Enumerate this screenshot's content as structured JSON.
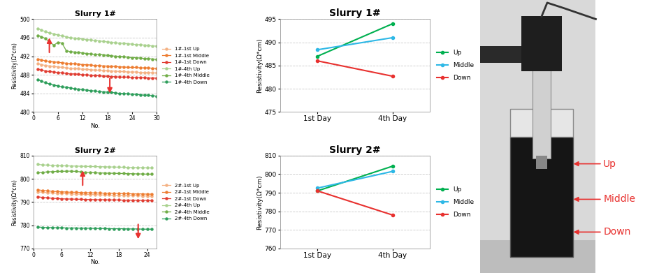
{
  "chart_data": [
    {
      "type": "line",
      "title": "Slurry 1#",
      "xlabel": "No.",
      "ylabel": "Resistivity(Ω*cm)",
      "x": [
        1,
        2,
        3,
        4,
        5,
        6,
        7,
        8,
        9,
        10,
        11,
        12,
        13,
        14,
        15,
        16,
        17,
        18,
        19,
        20,
        21,
        22,
        23,
        24,
        25,
        26,
        27,
        28,
        29,
        30
      ],
      "xlim": [
        0,
        30
      ],
      "xticks": [
        0,
        6,
        12,
        18,
        24,
        30
      ],
      "ylim": [
        480,
        500
      ],
      "yticks": [
        480,
        484,
        488,
        492,
        496,
        500
      ],
      "grid": true,
      "legend": "right",
      "marker": "o",
      "series": [
        {
          "name": "1#-1st Up",
          "color": "#f4b183",
          "values": [
            490.4,
            490.2,
            490.0,
            489.9,
            489.8,
            489.7,
            489.6,
            489.5,
            489.4,
            489.4,
            489.3,
            489.2,
            489.2,
            489.1,
            489.0,
            489.0,
            488.9,
            488.9,
            488.8,
            488.8,
            488.7,
            488.7,
            488.6,
            488.6,
            488.6,
            488.5,
            488.5,
            488.5,
            488.4,
            488.4
          ]
        },
        {
          "name": "1#-1st Middle",
          "color": "#ed7d31",
          "values": [
            491.4,
            491.2,
            491.0,
            490.9,
            490.8,
            490.7,
            490.6,
            490.5,
            490.4,
            490.4,
            490.3,
            490.2,
            490.2,
            490.1,
            490.0,
            490.0,
            489.9,
            489.9,
            489.8,
            489.8,
            489.7,
            489.7,
            489.6,
            489.6,
            489.6,
            489.5,
            489.5,
            489.5,
            489.4,
            489.4
          ]
        },
        {
          "name": "1#-1st Down",
          "color": "#e03c31",
          "values": [
            489.2,
            489.0,
            488.8,
            488.7,
            488.6,
            488.5,
            488.4,
            488.3,
            488.2,
            488.2,
            488.1,
            488.0,
            488.0,
            487.9,
            487.8,
            487.8,
            487.7,
            487.7,
            487.6,
            487.6,
            487.5,
            487.5,
            487.5,
            487.4,
            487.4,
            487.4,
            487.4,
            487.3,
            487.3,
            487.3
          ]
        },
        {
          "name": "1#-4th Up",
          "color": "#a9d18e",
          "values": [
            498.0,
            497.6,
            497.3,
            497.0,
            496.8,
            496.6,
            496.4,
            496.2,
            496.0,
            495.9,
            495.8,
            495.7,
            495.6,
            495.5,
            495.4,
            495.3,
            495.2,
            495.1,
            495.0,
            494.9,
            494.8,
            494.8,
            494.7,
            494.6,
            494.5,
            494.5,
            494.4,
            494.3,
            494.2,
            494.2
          ]
        },
        {
          "name": "1#-4th Middle",
          "color": "#70ad47",
          "values": [
            496.5,
            496.2,
            495.8,
            495.0,
            494.4,
            495.0,
            494.8,
            493.2,
            493.0,
            492.9,
            492.8,
            492.7,
            492.6,
            492.5,
            492.4,
            492.4,
            492.3,
            492.2,
            492.1,
            492.0,
            492.0,
            491.9,
            491.8,
            491.7,
            491.7,
            491.6,
            491.5,
            491.5,
            491.4,
            491.3
          ]
        },
        {
          "name": "1#-4th Down",
          "color": "#2e9e5b",
          "values": [
            487.0,
            486.6,
            486.3,
            486.0,
            485.8,
            485.6,
            485.4,
            485.3,
            485.2,
            485.0,
            484.9,
            484.8,
            484.7,
            484.6,
            484.5,
            484.4,
            484.3,
            484.3,
            484.2,
            484.1,
            484.0,
            484.0,
            483.9,
            483.8,
            483.8,
            483.7,
            483.6,
            483.6,
            483.5,
            483.4
          ]
        }
      ]
    },
    {
      "type": "line",
      "title": "Slurry 2#",
      "xlabel": "No.",
      "ylabel": "Resistivity(Ω*cm)",
      "x": [
        1,
        2,
        3,
        4,
        5,
        6,
        7,
        8,
        9,
        10,
        11,
        12,
        13,
        14,
        15,
        16,
        17,
        18,
        19,
        20,
        21,
        22,
        23,
        24,
        25
      ],
      "xlim": [
        0,
        26
      ],
      "xticks": [
        0,
        6,
        12,
        18,
        24
      ],
      "ylim": [
        770,
        810
      ],
      "yticks": [
        770,
        780,
        790,
        800,
        810
      ],
      "grid": true,
      "legend": "right",
      "marker": "o",
      "series": [
        {
          "name": "2#-1st Up",
          "color": "#f4b183",
          "values": [
            794.4,
            794.2,
            794.0,
            793.9,
            793.8,
            793.7,
            793.6,
            793.5,
            793.4,
            793.4,
            793.3,
            793.2,
            793.2,
            793.1,
            793.0,
            793.0,
            792.9,
            792.9,
            792.8,
            792.8,
            792.7,
            792.7,
            792.6,
            792.6,
            792.5
          ]
        },
        {
          "name": "2#-1st Middle",
          "color": "#ed7d31",
          "values": [
            795.2,
            795.0,
            794.8,
            794.6,
            794.5,
            794.4,
            794.3,
            794.2,
            794.2,
            794.1,
            794.0,
            794.0,
            793.9,
            793.9,
            793.8,
            793.8,
            793.7,
            793.7,
            793.6,
            793.6,
            793.5,
            793.5,
            793.5,
            793.4,
            793.4
          ]
        },
        {
          "name": "2#-1st Down",
          "color": "#e03c31",
          "values": [
            792.2,
            792.0,
            791.8,
            791.6,
            791.5,
            791.4,
            791.3,
            791.3,
            791.2,
            791.2,
            791.1,
            791.1,
            791.0,
            791.0,
            791.0,
            790.9,
            790.9,
            790.9,
            790.8,
            790.8,
            790.8,
            790.7,
            790.7,
            790.7,
            790.6
          ]
        },
        {
          "name": "2#-4th Up",
          "color": "#a9d18e",
          "values": [
            806.2,
            806.0,
            805.9,
            805.8,
            805.7,
            805.6,
            805.6,
            805.5,
            805.5,
            805.4,
            805.4,
            805.3,
            805.3,
            805.2,
            805.2,
            805.1,
            805.1,
            805.0,
            805.0,
            804.9,
            804.9,
            804.8,
            804.8,
            804.7,
            804.7
          ]
        },
        {
          "name": "2#-4th Middle",
          "color": "#70ad47",
          "values": [
            802.6,
            802.8,
            803.0,
            803.1,
            803.2,
            803.2,
            803.3,
            803.3,
            803.2,
            803.0,
            802.8,
            802.7,
            802.6,
            802.5,
            802.5,
            802.4,
            802.4,
            802.3,
            802.3,
            802.2,
            802.2,
            802.1,
            802.1,
            802.0,
            802.0
          ]
        },
        {
          "name": "2#-4th Down",
          "color": "#2e9e5b",
          "values": [
            779.2,
            779.1,
            779.0,
            779.0,
            778.9,
            778.9,
            778.8,
            778.8,
            778.8,
            778.7,
            778.7,
            778.7,
            778.6,
            778.6,
            778.6,
            778.5,
            778.5,
            778.5,
            778.5,
            778.4,
            778.4,
            778.4,
            778.3,
            778.3,
            778.3
          ]
        }
      ]
    },
    {
      "type": "line",
      "title": "Slurry 1#",
      "ylabel": "Resistivity(Ω*cm)",
      "categories": [
        "1st Day",
        "4th Day"
      ],
      "ylim": [
        475,
        495
      ],
      "yticks": [
        475,
        480,
        485,
        490,
        495
      ],
      "grid": true,
      "legend": "right",
      "marker": "o",
      "series": [
        {
          "name": "Up",
          "color": "#00b050",
          "values": [
            487.0,
            494.0
          ]
        },
        {
          "name": "Middle",
          "color": "#2eb8e6",
          "values": [
            488.4,
            491.0
          ]
        },
        {
          "name": "Down",
          "color": "#e8312f",
          "values": [
            486.0,
            482.7
          ]
        }
      ]
    },
    {
      "type": "line",
      "title": "Slurry 2#",
      "ylabel": "Resistivity(Ω*cm)",
      "categories": [
        "1st Day",
        "4th Day"
      ],
      "ylim": [
        760,
        810
      ],
      "yticks": [
        760,
        770,
        780,
        790,
        800,
        810
      ],
      "grid": true,
      "legend": "right",
      "marker": "o",
      "series": [
        {
          "name": "Up",
          "color": "#00b050",
          "values": [
            791.0,
            804.3
          ]
        },
        {
          "name": "Middle",
          "color": "#2eb8e6",
          "values": [
            792.5,
            801.5
          ]
        },
        {
          "name": "Down",
          "color": "#e8312f",
          "values": [
            791.0,
            778.0
          ]
        }
      ]
    }
  ],
  "photo": {
    "labels": [
      "Up",
      "Middle",
      "Down"
    ]
  }
}
